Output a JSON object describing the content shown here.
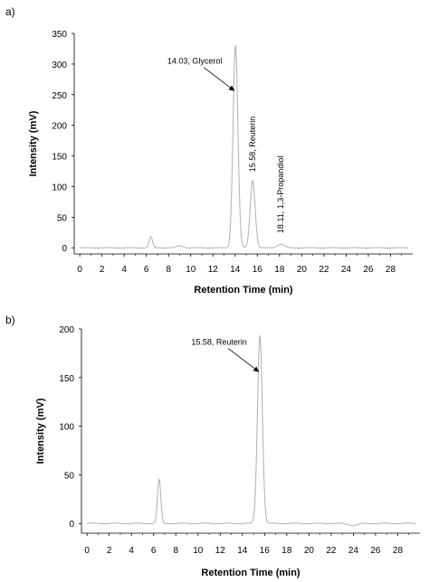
{
  "panels": [
    {
      "label": "a)"
    },
    {
      "label": "b)"
    }
  ],
  "chart_data": [
    {
      "type": "line",
      "xlabel": "Retention Time (min)",
      "ylabel": "Intensity (mV)",
      "xlim": [
        -0.5,
        30
      ],
      "ylim": [
        -10,
        350
      ],
      "xticks": [
        0,
        2,
        4,
        6,
        8,
        10,
        12,
        14,
        16,
        18,
        20,
        22,
        24,
        26,
        28
      ],
      "yticks": [
        0,
        50,
        100,
        150,
        200,
        250,
        300,
        350
      ],
      "line_color": "#b0b0b0",
      "peaks": [
        {
          "rt": 6.4,
          "height": 18,
          "width": 0.15
        },
        {
          "rt": 9.0,
          "height": 3,
          "width": 0.3
        },
        {
          "rt": 14.03,
          "height": 330,
          "width": 0.22
        },
        {
          "rt": 15.58,
          "height": 110,
          "width": 0.22
        },
        {
          "rt": 18.11,
          "height": 6,
          "width": 0.3
        }
      ],
      "annotations": [
        {
          "text": "14.03, Glycerol",
          "x": 14.03,
          "y": 330,
          "rotation": 0,
          "arrow": true
        },
        {
          "text": "15.58, Reuterin",
          "x": 15.58,
          "y": 115,
          "rotation": -90,
          "arrow": false
        },
        {
          "text": "18.11, 1,3-Propandiol",
          "x": 18.11,
          "y": 15,
          "rotation": -90,
          "arrow": false
        }
      ]
    },
    {
      "type": "line",
      "xlabel": "Retention Time (min)",
      "ylabel": "Intensity (mV)",
      "xlim": [
        -0.5,
        30
      ],
      "ylim": [
        -10,
        200
      ],
      "xticks": [
        0,
        2,
        4,
        6,
        8,
        10,
        12,
        14,
        16,
        18,
        20,
        22,
        24,
        26,
        28
      ],
      "yticks": [
        0,
        50,
        100,
        150,
        200
      ],
      "line_color": "#b0b0b0",
      "peaks": [
        {
          "rt": 6.5,
          "height": 45,
          "width": 0.15
        },
        {
          "rt": 15.58,
          "height": 193,
          "width": 0.22
        },
        {
          "rt": 24.0,
          "height": -2,
          "width": 0.4
        }
      ],
      "annotations": [
        {
          "text": "15.58, Reuterin",
          "x": 15.58,
          "y": 193,
          "rotation": 0,
          "arrow": true,
          "color": "#5a1a1a"
        }
      ]
    }
  ]
}
